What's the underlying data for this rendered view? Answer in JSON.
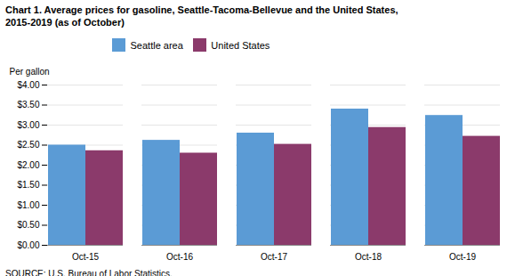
{
  "chart_data": {
    "type": "bar",
    "title": "Chart 1. Average prices for gasoline, Seattle-Tacoma-Bellevue and the United States,\n2015-2019  (as of October)",
    "ylabel": "Per gallon",
    "categories": [
      "Oct-15",
      "Oct-16",
      "Oct-17",
      "Oct-18",
      "Oct-19"
    ],
    "series": [
      {
        "name": "Seattle area",
        "color": "#5B9BD5",
        "values": [
          2.5,
          2.62,
          2.8,
          3.4,
          3.24
        ]
      },
      {
        "name": "United States",
        "color": "#8B3A6B",
        "values": [
          2.36,
          2.3,
          2.52,
          2.94,
          2.72
        ]
      }
    ],
    "ylim": [
      0,
      4.0
    ],
    "yticks": [
      {
        "value": 0.0,
        "label": "$0.00"
      },
      {
        "value": 0.5,
        "label": "$0.50"
      },
      {
        "value": 1.0,
        "label": "$1.00"
      },
      {
        "value": 1.5,
        "label": "$1.50"
      },
      {
        "value": 2.0,
        "label": "$2.00"
      },
      {
        "value": 2.5,
        "label": "$2.50"
      },
      {
        "value": 3.0,
        "label": "$3.00"
      },
      {
        "value": 3.5,
        "label": "$3.50"
      },
      {
        "value": 4.0,
        "label": "$4.00"
      }
    ],
    "grid": true,
    "legend": "top",
    "annotations": [
      "SOURCE: U.S. Bureau of Labor Statistics."
    ]
  }
}
